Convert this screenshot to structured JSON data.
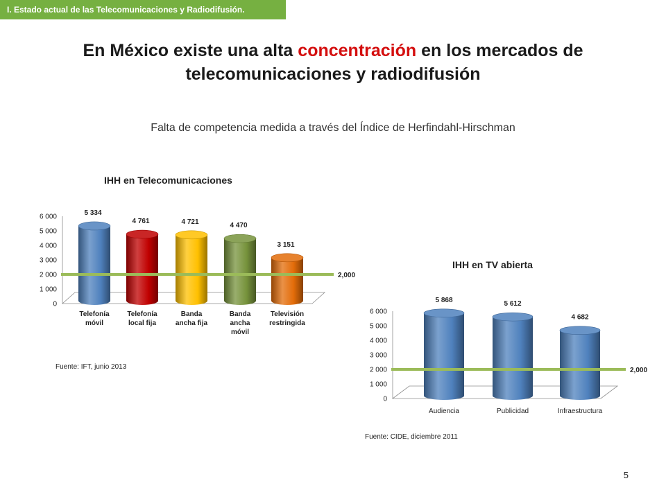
{
  "header": {
    "section_tab": "I. Estado actual de las Telecomunicaciones y Radiodifusión.",
    "title_part1": "En México existe una alta",
    "title_highlight": "concentración",
    "title_part2": "en los mercados de telecomunicaciones y radiodifusión",
    "subtitle": "Falta de competencia medida a través del  Índice de Herfindahl-Hirschman"
  },
  "page_number": "5",
  "colors": {
    "tab_green": "#76b041",
    "highlight_red": "#d40e0e",
    "reference_line": "#9bbb59"
  },
  "chart_data": [
    {
      "type": "bar",
      "title": "IHH en Telecomunicaciones",
      "categories": [
        [
          "Telefonía",
          "móvil"
        ],
        [
          "Telefonía",
          "local fija"
        ],
        [
          "Banda",
          "ancha fija"
        ],
        [
          "Banda",
          "ancha",
          "móvil"
        ],
        [
          "Televisión",
          "restringida"
        ]
      ],
      "values": [
        5334,
        4761,
        4721,
        4470,
        3151
      ],
      "value_labels": [
        "5 334",
        "4 761",
        "4 721",
        "4 470",
        "3 151"
      ],
      "bar_colors": [
        "#4f81bd",
        "#c00000",
        "#ffc000",
        "#77933c",
        "#e36c09"
      ],
      "ylim": [
        0,
        6000
      ],
      "yticks": [
        "0",
        "1 000",
        "2 000",
        "3 000",
        "4 000",
        "5 000",
        "6 000"
      ],
      "reference_line": {
        "value": 2000,
        "label": "2,000"
      },
      "source": "Fuente: IFT, junio 2013",
      "style": "3d-cylinder"
    },
    {
      "type": "bar",
      "title": "IHH en TV abierta",
      "categories": [
        [
          "Audiencia"
        ],
        [
          "Publicidad"
        ],
        [
          "Infraestructura"
        ]
      ],
      "values": [
        5868,
        5612,
        4682
      ],
      "value_labels": [
        "5 868",
        "5 612",
        "4 682"
      ],
      "bar_colors": [
        "#4f81bd",
        "#4f81bd",
        "#4f81bd"
      ],
      "ylim": [
        0,
        6000
      ],
      "yticks": [
        "0",
        "1 000",
        "2 000",
        "3 000",
        "4 000",
        "5 000",
        "6 000"
      ],
      "reference_line": {
        "value": 2000,
        "label": "2,000"
      },
      "source": "Fuente: CIDE, diciembre 2011",
      "style": "3d-cylinder"
    }
  ]
}
